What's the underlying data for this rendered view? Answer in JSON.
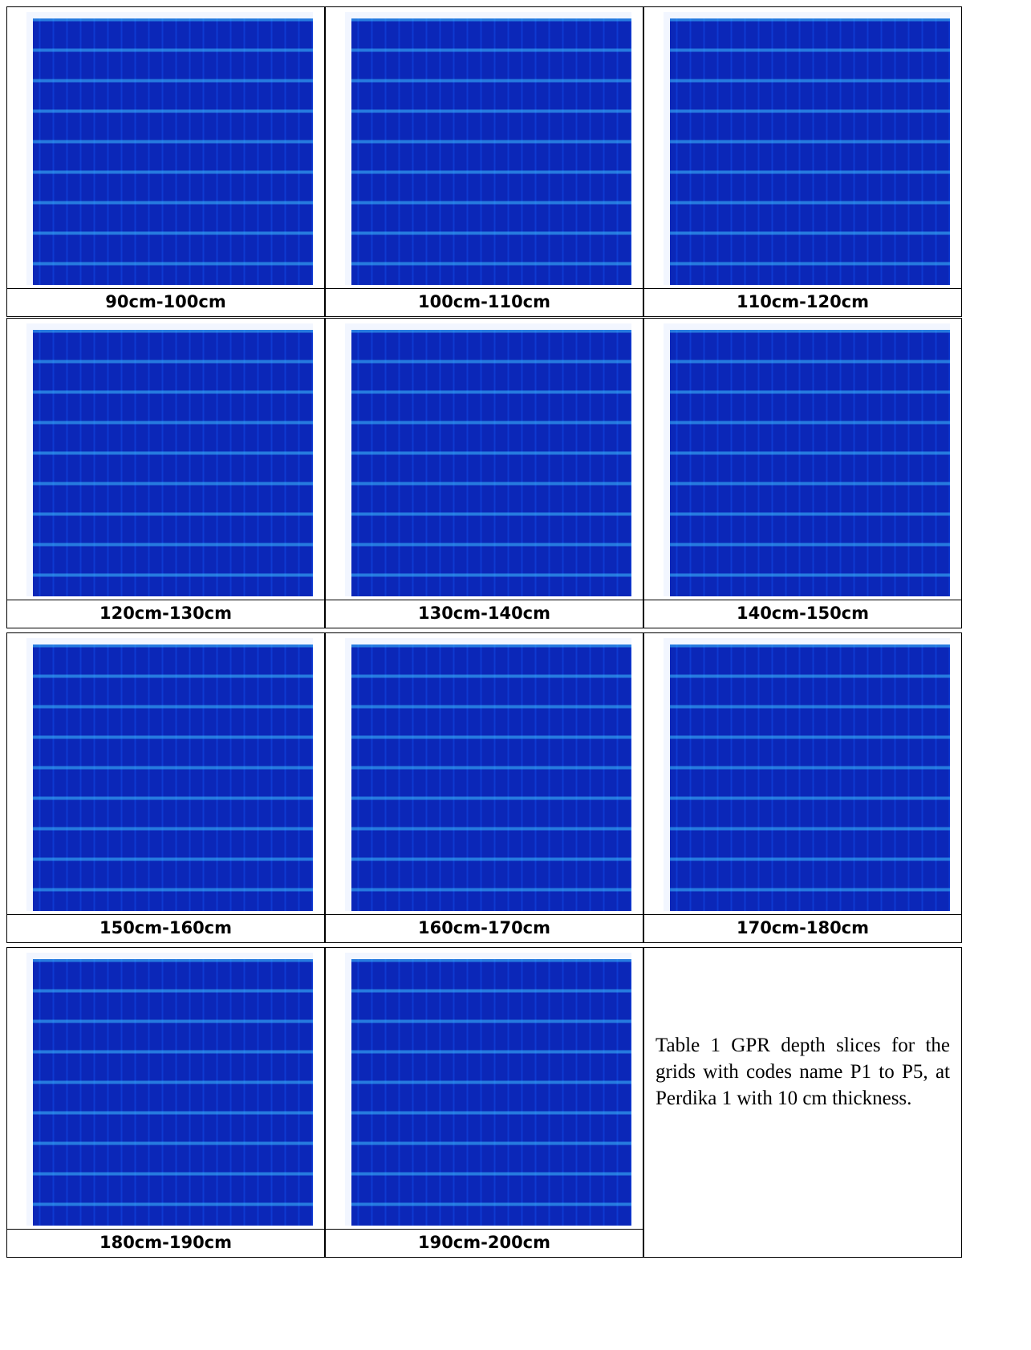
{
  "table": {
    "captions": [
      "90cm-100cm",
      "100cm-110cm",
      "110cm-120cm",
      "120cm-130cm",
      "130cm-140cm",
      "140cm-150cm",
      "150cm-160cm",
      "160cm-170cm",
      "170cm-180cm",
      "180cm-190cm",
      "190cm-200cm"
    ],
    "note": "Table 1 GPR depth slices for the grids with codes name P1 to P5, at Perdika 1 with 10 cm thickness."
  }
}
